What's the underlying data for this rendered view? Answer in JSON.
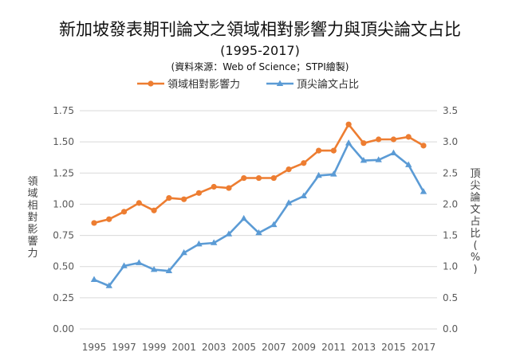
{
  "chart_data": {
    "type": "line",
    "title": "新加坡發表期刊論文之領域相對影響力與頂尖論文占比",
    "subtitle": "(1995-2017)",
    "source": "(資料來源：Web of Science；STPI繪製)",
    "x": [
      1995,
      1996,
      1997,
      1998,
      1999,
      2000,
      2001,
      2002,
      2003,
      2004,
      2005,
      2006,
      2007,
      2008,
      2009,
      2010,
      2011,
      2012,
      2013,
      2014,
      2015,
      2016,
      2017
    ],
    "x_tick_labels": [
      "1995",
      "1997",
      "1999",
      "2001",
      "2003",
      "2005",
      "2007",
      "2009",
      "2011",
      "2013",
      "2015",
      "2017"
    ],
    "series": [
      {
        "name": "領域相對影響力",
        "axis": "left",
        "color": "#ED7D31",
        "marker": "circle",
        "values": [
          0.85,
          0.88,
          0.94,
          1.01,
          0.95,
          1.05,
          1.04,
          1.09,
          1.14,
          1.13,
          1.21,
          1.21,
          1.21,
          1.28,
          1.33,
          1.43,
          1.43,
          1.64,
          1.49,
          1.52,
          1.52,
          1.54,
          1.47
        ]
      },
      {
        "name": "頂尖論文占比",
        "axis": "right",
        "color": "#5B9BD5",
        "marker": "triangle",
        "values": [
          0.79,
          0.69,
          1.01,
          1.06,
          0.95,
          0.93,
          1.22,
          1.36,
          1.38,
          1.52,
          1.77,
          1.54,
          1.67,
          2.02,
          2.13,
          2.46,
          2.48,
          2.98,
          2.7,
          2.71,
          2.82,
          2.63,
          2.2
        ]
      }
    ],
    "ylabel_left": "領域相對影響力",
    "ylabel_right": "頂尖論文占比 (%)",
    "ylim_left": [
      0,
      1.75
    ],
    "ylim_right": [
      0,
      3.5
    ],
    "y_ticks_left": [
      "0.00",
      "0.25",
      "0.50",
      "0.75",
      "1.00",
      "1.25",
      "1.50",
      "1.75"
    ],
    "y_ticks_right": [
      "0.0",
      "0.5",
      "1.0",
      "1.5",
      "2.0",
      "2.5",
      "3.0",
      "3.5"
    ],
    "grid": true,
    "legend_position": "top"
  }
}
